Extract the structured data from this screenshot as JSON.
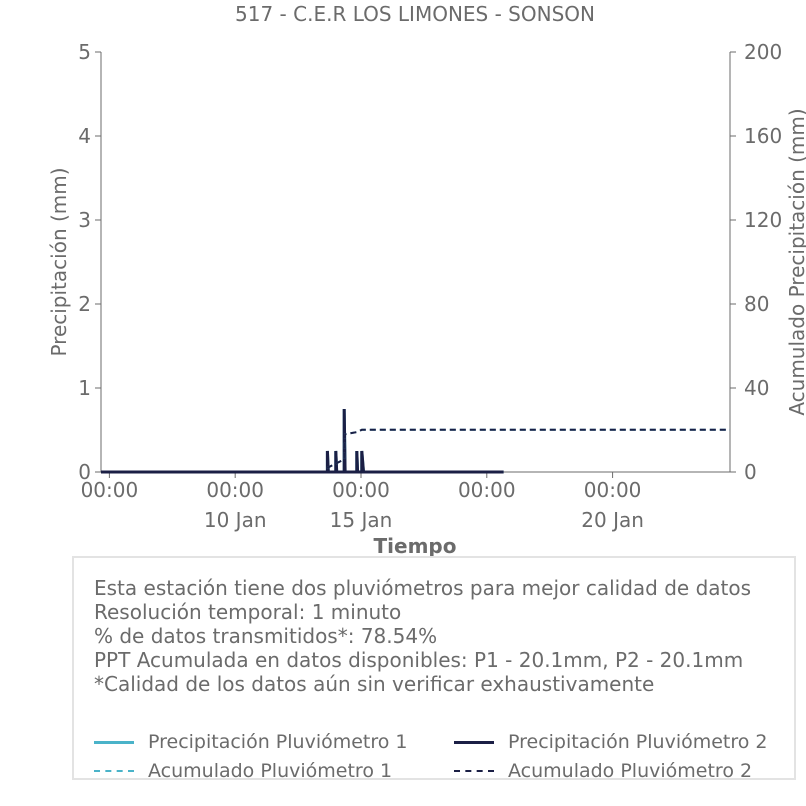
{
  "chart_data": {
    "type": "line",
    "title": "517 - C.E.R LOS LIMONES - SONSON",
    "xlabel": "Tiempo",
    "ylabel_left": "Precipitación (mm)",
    "ylabel_right": "Acumulado Precipitación (mm)",
    "xlim": [
      8.4,
      23.4
    ],
    "ylim_left": [
      0,
      5
    ],
    "ylim_right": [
      0,
      200
    ],
    "yticks_left": [
      0,
      1,
      2,
      3,
      4,
      5
    ],
    "yticks_right": [
      0,
      40,
      80,
      120,
      160,
      200
    ],
    "xticks_major": [
      {
        "x": 8.6,
        "top": "00:00",
        "bottom": ""
      },
      {
        "x": 11.6,
        "top": "00:00",
        "bottom": "10 Jan"
      },
      {
        "x": 14.6,
        "top": "00:00",
        "bottom": "15 Jan"
      },
      {
        "x": 17.6,
        "top": "00:00",
        "bottom": ""
      },
      {
        "x": 20.6,
        "top": "00:00",
        "bottom": "20 Jan"
      }
    ],
    "grid": false,
    "series": [
      {
        "name": "Precipitación Pluviómetro 1",
        "axis": "left",
        "color": "#4ab3c9",
        "style": "solid",
        "points": [
          [
            8.4,
            0
          ],
          [
            13.8,
            0
          ],
          [
            13.8,
            0.25
          ],
          [
            13.82,
            0
          ],
          [
            14.0,
            0
          ],
          [
            14.0,
            0.25
          ],
          [
            14.02,
            0
          ],
          [
            14.2,
            0
          ],
          [
            14.2,
            0.75
          ],
          [
            14.22,
            0
          ],
          [
            14.5,
            0
          ],
          [
            14.5,
            0.25
          ],
          [
            14.52,
            0
          ],
          [
            14.62,
            0
          ],
          [
            14.62,
            0.25
          ],
          [
            14.66,
            0
          ],
          [
            18.0,
            0
          ]
        ]
      },
      {
        "name": "Precipitación Pluviómetro 2",
        "axis": "left",
        "color": "#1b1f45",
        "style": "solid",
        "points": [
          [
            8.4,
            0
          ],
          [
            13.8,
            0
          ],
          [
            13.8,
            0.25
          ],
          [
            13.82,
            0
          ],
          [
            14.0,
            0
          ],
          [
            14.0,
            0.25
          ],
          [
            14.02,
            0
          ],
          [
            14.2,
            0
          ],
          [
            14.2,
            0.75
          ],
          [
            14.22,
            0
          ],
          [
            14.5,
            0
          ],
          [
            14.5,
            0.25
          ],
          [
            14.52,
            0
          ],
          [
            14.62,
            0
          ],
          [
            14.62,
            0.25
          ],
          [
            14.66,
            0
          ],
          [
            18.0,
            0
          ]
        ]
      },
      {
        "name": "Acumulado Pluviómetro 1",
        "axis": "right",
        "color": "#4ab3c9",
        "style": "dashed",
        "points": [
          [
            8.4,
            0
          ],
          [
            13.8,
            0
          ],
          [
            13.8,
            2
          ],
          [
            14.0,
            4
          ],
          [
            14.2,
            6
          ],
          [
            14.22,
            18
          ],
          [
            14.5,
            19
          ],
          [
            14.62,
            20.1
          ],
          [
            23.4,
            20.1
          ]
        ]
      },
      {
        "name": "Acumulado Pluviómetro 2",
        "axis": "right",
        "color": "#1b1f45",
        "style": "dashed",
        "points": [
          [
            8.4,
            0
          ],
          [
            13.8,
            0
          ],
          [
            13.8,
            2
          ],
          [
            14.0,
            4
          ],
          [
            14.2,
            6
          ],
          [
            14.22,
            18
          ],
          [
            14.5,
            19
          ],
          [
            14.62,
            20.1
          ],
          [
            23.4,
            20.1
          ]
        ]
      }
    ]
  },
  "info": {
    "lines": [
      "Esta estación tiene dos pluviómetros para mejor calidad de datos",
      "Resolución temporal: 1 minuto",
      "% de datos transmitidos*: 78.54%",
      "PPT Acumulada en datos disponibles: P1 - 20.1mm, P2 - 20.1mm",
      "*Calidad de los datos aún sin verificar exhaustivamente"
    ]
  },
  "legend": [
    {
      "label": "Precipitación Pluviómetro 1",
      "color": "#4ab3c9",
      "style": "solid"
    },
    {
      "label": "Precipitación Pluviómetro 2",
      "color": "#1b1f45",
      "style": "solid"
    },
    {
      "label": "Acumulado Pluviómetro 1",
      "color": "#4ab3c9",
      "style": "dashed"
    },
    {
      "label": "Acumulado Pluviómetro 2",
      "color": "#1b1f45",
      "style": "dashed"
    }
  ]
}
